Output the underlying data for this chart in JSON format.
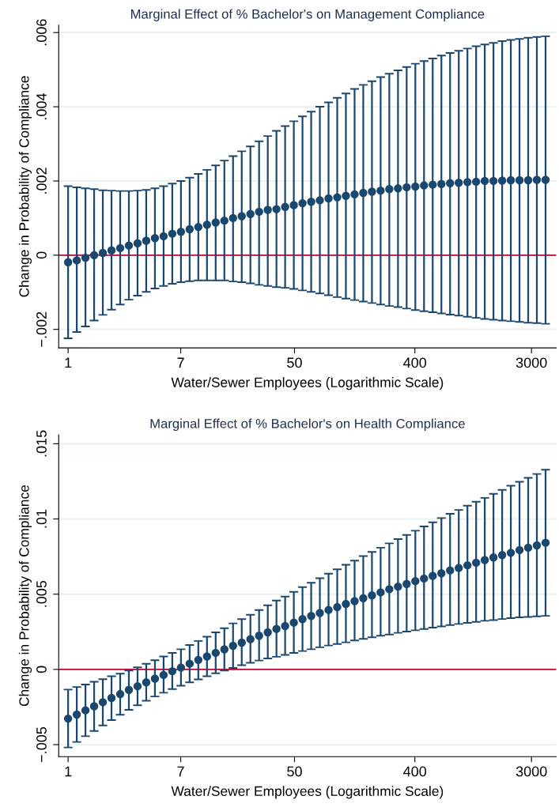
{
  "chart_data": [
    {
      "type": "scatter",
      "title": "Marginal Effect of % Bachelor's on Management Compliance",
      "xlabel": "Water/Sewer Employees (Logarithmic Scale)",
      "ylabel": "Change in Probability of Compliance",
      "log": "x",
      "xlim": [
        0.85,
        4600
      ],
      "xticks": [
        1,
        7,
        50,
        400,
        3000
      ],
      "ylim": [
        -0.0025,
        0.0062
      ],
      "yticks": [
        {
          "value": -0.002,
          "label": "−.002"
        },
        0,
        {
          "value": 0.002,
          "label": ".002"
        },
        {
          "value": 0.004,
          "label": ".004"
        },
        {
          "value": 0.006,
          "label": ".006"
        }
      ],
      "grid": "y",
      "marker": "circle",
      "ref_lines": [
        {
          "axis": "y",
          "value": 0,
          "color": "#c10534"
        }
      ],
      "x": [
        1,
        1.162,
        1.35,
        1.568,
        1.822,
        2.117,
        2.46,
        2.858,
        3.32,
        3.857,
        4.482,
        5.207,
        6.05,
        7.029,
        8.166,
        9.488,
        11.02,
        12.81,
        14.88,
        17.29,
        20.09,
        23.34,
        27.11,
        31.5,
        36.6,
        42.52,
        49.4,
        57.4,
        66.69,
        77.48,
        90.02,
        104.6,
        121.5,
        141.2,
        164.0,
        190.6,
        221.4,
        257.2,
        298.9,
        347.2,
        403.4,
        468.7,
        544.6,
        632.7,
        735.1,
        854.1,
        992.3,
        1153,
        1339,
        1556,
        1808,
        2100,
        2440,
        2835,
        3294,
        3827
      ],
      "series": [
        {
          "color": "#1a476f",
          "values": [
            -0.00019,
            -0.00014,
            -7e-05,
            0.0,
            6e-05,
            0.00013,
            0.00019,
            0.00026,
            0.00032,
            0.00039,
            0.00046,
            0.00051,
            0.00058,
            0.00063,
            0.0007,
            0.00076,
            0.00082,
            0.00088,
            0.00093,
            0.001,
            0.00105,
            0.00111,
            0.00117,
            0.00122,
            0.00124,
            0.0013,
            0.00135,
            0.0014,
            0.00144,
            0.00148,
            0.00153,
            0.00156,
            0.0016,
            0.00164,
            0.00168,
            0.00171,
            0.00174,
            0.00178,
            0.0018,
            0.00183,
            0.00185,
            0.00188,
            0.0019,
            0.00192,
            0.00194,
            0.00195,
            0.00197,
            0.00198,
            0.002,
            0.002,
            0.00201,
            0.00202,
            0.00202,
            0.00202,
            0.00203,
            0.00203
          ],
          "errors": [
            [
              -0.00224,
              0.00186
            ],
            [
              -0.00207,
              0.00183
            ],
            [
              -0.00192,
              0.0018
            ],
            [
              -0.00176,
              0.00178
            ],
            [
              -0.00161,
              0.00175
            ],
            [
              -0.00147,
              0.00174
            ],
            [
              -0.00133,
              0.00173
            ],
            [
              -0.0012,
              0.00173
            ],
            [
              -0.00109,
              0.00174
            ],
            [
              -0.00099,
              0.00176
            ],
            [
              -0.0009,
              0.0018
            ],
            [
              -0.00083,
              0.00186
            ],
            [
              -0.00077,
              0.00193
            ],
            [
              -0.00073,
              0.002
            ],
            [
              -0.0007,
              0.00209
            ],
            [
              -0.00068,
              0.00219
            ],
            [
              -0.00068,
              0.0023
            ],
            [
              -0.00068,
              0.00242
            ],
            [
              -0.00068,
              0.00255
            ],
            [
              -0.00071,
              0.00267
            ],
            [
              -0.00073,
              0.0028
            ],
            [
              -0.00076,
              0.00293
            ],
            [
              -0.0008,
              0.00307
            ],
            [
              -0.00083,
              0.00321
            ],
            [
              -0.00086,
              0.00335
            ],
            [
              -0.00088,
              0.00348
            ],
            [
              -0.00091,
              0.00361
            ],
            [
              -0.00095,
              0.00374
            ],
            [
              -0.00099,
              0.00387
            ],
            [
              -0.00103,
              0.004
            ],
            [
              -0.00108,
              0.00412
            ],
            [
              -0.00113,
              0.00424
            ],
            [
              -0.00117,
              0.00436
            ],
            [
              -0.00121,
              0.00448
            ],
            [
              -0.00125,
              0.00459
            ],
            [
              -0.00129,
              0.00469
            ],
            [
              -0.00133,
              0.0048
            ],
            [
              -0.00137,
              0.00489
            ],
            [
              -0.0014,
              0.00498
            ],
            [
              -0.00144,
              0.00507
            ],
            [
              -0.00148,
              0.00516
            ],
            [
              -0.00151,
              0.00523
            ],
            [
              -0.00154,
              0.0053
            ],
            [
              -0.00157,
              0.00538
            ],
            [
              -0.0016,
              0.00545
            ],
            [
              -0.00163,
              0.00551
            ],
            [
              -0.00166,
              0.00557
            ],
            [
              -0.00169,
              0.00563
            ],
            [
              -0.00172,
              0.00568
            ],
            [
              -0.00174,
              0.00572
            ],
            [
              -0.00176,
              0.00577
            ],
            [
              -0.00178,
              0.0058
            ],
            [
              -0.0018,
              0.00583
            ],
            [
              -0.00182,
              0.00586
            ],
            [
              -0.00183,
              0.00588
            ],
            [
              -0.00185,
              0.0059
            ]
          ]
        }
      ]
    },
    {
      "type": "scatter",
      "title": "Marginal Effect of % Bachelor's on Health Compliance",
      "xlabel": "Water/Sewer Employees (Logarithmic Scale)",
      "ylabel": "Change in Probability of Compliance",
      "log": "x",
      "xlim": [
        0.85,
        4600
      ],
      "xticks": [
        1,
        7,
        50,
        400,
        3000
      ],
      "ylim": [
        -0.0058,
        0.0156
      ],
      "yticks": [
        {
          "value": -0.005,
          "label": "−.005"
        },
        0,
        {
          "value": 0.005,
          "label": ".005"
        },
        {
          "value": 0.01,
          "label": ".01"
        },
        {
          "value": 0.015,
          "label": ".015"
        }
      ],
      "grid": "y",
      "marker": "circle",
      "ref_lines": [
        {
          "axis": "y",
          "value": 0,
          "color": "#c10534"
        }
      ],
      "x": [
        1,
        1.162,
        1.35,
        1.568,
        1.822,
        2.117,
        2.46,
        2.858,
        3.32,
        3.857,
        4.482,
        5.207,
        6.05,
        7.029,
        8.166,
        9.488,
        11.02,
        12.81,
        14.88,
        17.29,
        20.09,
        23.34,
        27.11,
        31.5,
        36.6,
        42.52,
        49.4,
        57.4,
        66.69,
        77.48,
        90.02,
        104.6,
        121.5,
        141.2,
        164.0,
        190.6,
        221.4,
        257.2,
        298.9,
        347.2,
        403.4,
        468.7,
        544.6,
        632.7,
        735.1,
        854.1,
        992.3,
        1153,
        1339,
        1556,
        1808,
        2100,
        2440,
        2835,
        3294,
        3827
      ],
      "series": [
        {
          "color": "#1a476f",
          "values": [
            -0.00327,
            -0.003,
            -0.00272,
            -0.00245,
            -0.00218,
            -0.0019,
            -0.00164,
            -0.00136,
            -0.00112,
            -0.00086,
            -0.00061,
            -0.00037,
            -0.00012,
            0.00012,
            0.00038,
            0.00063,
            0.00086,
            0.0011,
            0.00133,
            0.00157,
            0.00178,
            0.00201,
            0.00224,
            0.00246,
            0.00269,
            0.00288,
            0.00311,
            0.00334,
            0.00355,
            0.00375,
            0.00395,
            0.00414,
            0.00435,
            0.00454,
            0.00473,
            0.00492,
            0.00512,
            0.00533,
            0.0055,
            0.00568,
            0.00587,
            0.00604,
            0.00622,
            0.00639,
            0.00658,
            0.00674,
            0.00692,
            0.00709,
            0.00727,
            0.00744,
            0.0076,
            0.00775,
            0.00793,
            0.00809,
            0.00824,
            0.00842
          ],
          "errors": [
            [
              -0.00519,
              -0.00134
            ],
            [
              -0.00482,
              -0.00117
            ],
            [
              -0.00444,
              -0.00101
            ],
            [
              -0.00409,
              -0.00082
            ],
            [
              -0.00372,
              -0.00065
            ],
            [
              -0.00337,
              -0.00045
            ],
            [
              -0.00302,
              -0.00028
            ],
            [
              -0.00269,
              -7e-05
            ],
            [
              -0.00238,
              0.00014
            ],
            [
              -0.00208,
              0.00037
            ],
            [
              -0.0018,
              0.00061
            ],
            [
              -0.00155,
              0.00086
            ],
            [
              -0.00131,
              0.0011
            ],
            [
              -0.00108,
              0.00134
            ],
            [
              -0.00086,
              0.00162
            ],
            [
              -0.00066,
              0.00189
            ],
            [
              -0.00045,
              0.00217
            ],
            [
              -0.00026,
              0.00246
            ],
            [
              -7e-05,
              0.00274
            ],
            [
              0.0001,
              0.00306
            ],
            [
              0.00028,
              0.00334
            ],
            [
              0.00044,
              0.00363
            ],
            [
              0.00059,
              0.00395
            ],
            [
              0.00073,
              0.00426
            ],
            [
              0.00084,
              0.00458
            ],
            [
              0.00096,
              0.00484
            ],
            [
              0.0011,
              0.00515
            ],
            [
              0.00122,
              0.00547
            ],
            [
              0.00134,
              0.00576
            ],
            [
              0.00147,
              0.00606
            ],
            [
              0.00159,
              0.00636
            ],
            [
              0.00169,
              0.00665
            ],
            [
              0.0018,
              0.00695
            ],
            [
              0.00192,
              0.00723
            ],
            [
              0.00203,
              0.00753
            ],
            [
              0.00213,
              0.00781
            ],
            [
              0.00224,
              0.00809
            ],
            [
              0.00232,
              0.00838
            ],
            [
              0.00243,
              0.00866
            ],
            [
              0.00251,
              0.00894
            ],
            [
              0.0026,
              0.00922
            ],
            [
              0.00269,
              0.0095
            ],
            [
              0.00278,
              0.00978
            ],
            [
              0.00286,
              0.01006
            ],
            [
              0.00295,
              0.01034
            ],
            [
              0.00302,
              0.0106
            ],
            [
              0.00309,
              0.01088
            ],
            [
              0.00316,
              0.01114
            ],
            [
              0.00323,
              0.0114
            ],
            [
              0.00328,
              0.01167
            ],
            [
              0.00335,
              0.01193
            ],
            [
              0.00341,
              0.01221
            ],
            [
              0.00346,
              0.01247
            ],
            [
              0.00349,
              0.01273
            ],
            [
              0.00353,
              0.01299
            ],
            [
              0.00356,
              0.01327
            ]
          ]
        }
      ]
    }
  ]
}
